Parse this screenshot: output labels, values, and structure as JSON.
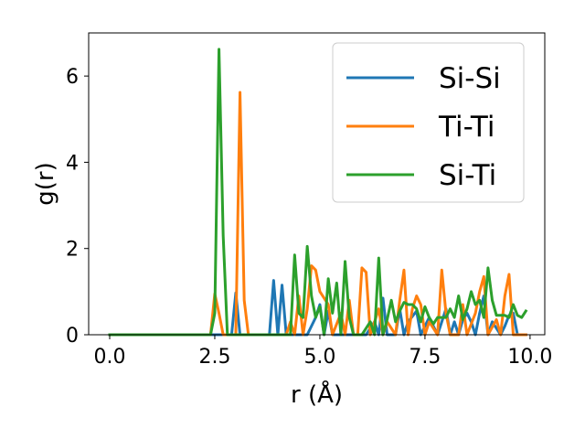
{
  "chart_data": {
    "type": "line",
    "title": "",
    "xlabel": "r (Å)",
    "ylabel": "g(r)",
    "xlim": [
      -0.5,
      10.35
    ],
    "ylim": [
      0,
      7
    ],
    "xticks": [
      0.0,
      2.5,
      5.0,
      7.5,
      10.0
    ],
    "xtick_labels": [
      "0.0",
      "2.5",
      "5.0",
      "7.5",
      "10.0"
    ],
    "yticks": [
      0,
      2,
      4,
      6
    ],
    "ytick_labels": [
      "0",
      "2",
      "4",
      "6"
    ],
    "grid": false,
    "legend_position": "top-right",
    "series": [
      {
        "name": "Si-Si",
        "color": "#1f77b4",
        "x": [
          0.0,
          2.9,
          3.0,
          3.1,
          3.8,
          3.9,
          4.0,
          4.1,
          4.2,
          4.7,
          4.9,
          5.0,
          5.1,
          5.2,
          5.3,
          6.1,
          6.3,
          6.4,
          6.5,
          6.6,
          6.8,
          6.9,
          7.0,
          7.1,
          7.3,
          7.4,
          7.5,
          7.6,
          7.8,
          7.9,
          8.0,
          8.1,
          8.2,
          8.3,
          8.4,
          8.5,
          8.6,
          8.7,
          8.8,
          8.9,
          9.0,
          9.1,
          9.3,
          9.4,
          9.5,
          9.6,
          9.7,
          9.9
        ],
        "y": [
          0,
          0,
          0.97,
          0,
          0,
          1.26,
          0,
          1.15,
          0,
          0,
          0.4,
          0.7,
          0,
          0.55,
          0,
          0,
          0.3,
          0,
          0.85,
          0,
          0,
          0.6,
          0,
          0.3,
          0.55,
          0,
          0.2,
          0.4,
          0,
          0.3,
          0.6,
          0,
          0.3,
          0,
          0.35,
          0.5,
          0.3,
          0,
          0.5,
          0.9,
          0,
          0.3,
          0,
          0.2,
          0.45,
          0.5,
          0,
          0
        ]
      },
      {
        "name": "Ti-Ti",
        "color": "#ff7f0e",
        "x": [
          0.0,
          2.4,
          2.5,
          2.6,
          2.7,
          3.0,
          3.1,
          3.2,
          3.3,
          4.2,
          4.3,
          4.4,
          4.5,
          4.6,
          4.7,
          4.8,
          4.9,
          5.0,
          5.2,
          5.3,
          5.5,
          5.6,
          5.7,
          5.8,
          5.9,
          6.0,
          6.1,
          6.2,
          6.4,
          6.5,
          6.6,
          6.8,
          6.9,
          7.0,
          7.1,
          7.2,
          7.3,
          7.4,
          7.5,
          7.6,
          7.8,
          7.9,
          8.0,
          8.1,
          8.3,
          8.4,
          8.5,
          8.7,
          8.8,
          8.9,
          9.0,
          9.2,
          9.3,
          9.4,
          9.5,
          9.6,
          9.7,
          9.9
        ],
        "y": [
          0,
          0,
          0.95,
          0.5,
          0,
          0,
          5.62,
          0.8,
          0,
          0,
          0.3,
          0,
          0.9,
          0,
          0.6,
          1.6,
          1.5,
          1.0,
          0.7,
          0,
          0.5,
          0,
          0.8,
          0,
          0,
          1.55,
          1.45,
          0,
          0.6,
          0,
          0.3,
          0,
          0.8,
          1.5,
          0,
          0.6,
          0.9,
          0.7,
          0,
          0.3,
          0,
          1.5,
          0.5,
          0,
          0,
          0.7,
          0,
          0.5,
          1.0,
          1.35,
          0,
          0.35,
          0,
          0.9,
          1.4,
          0,
          0,
          0
        ]
      },
      {
        "name": "Si-Ti",
        "color": "#2ca02c",
        "x": [
          0.0,
          2.4,
          2.5,
          2.6,
          2.7,
          2.8,
          4.0,
          4.3,
          4.4,
          4.5,
          4.6,
          4.7,
          4.8,
          4.9,
          5.0,
          5.1,
          5.2,
          5.3,
          5.4,
          5.5,
          5.6,
          5.7,
          5.8,
          6.0,
          6.2,
          6.3,
          6.4,
          6.5,
          6.6,
          6.7,
          6.8,
          6.9,
          7.0,
          7.1,
          7.2,
          7.3,
          7.4,
          7.5,
          7.6,
          7.7,
          7.8,
          8.0,
          8.1,
          8.2,
          8.3,
          8.4,
          8.5,
          8.6,
          8.7,
          8.8,
          8.9,
          9.0,
          9.1,
          9.2,
          9.3,
          9.4,
          9.5,
          9.6,
          9.7,
          9.8,
          9.9
        ],
        "y": [
          0,
          0,
          0.5,
          6.62,
          2.3,
          0,
          0,
          0,
          1.85,
          0.5,
          0.4,
          2.05,
          0.9,
          0.4,
          0.65,
          0,
          1.3,
          0.5,
          1.2,
          0,
          1.7,
          0.4,
          0,
          0,
          0.3,
          0,
          1.78,
          0,
          0.35,
          0.8,
          0.3,
          0.55,
          0.75,
          0.7,
          0.7,
          0.6,
          0.3,
          0.65,
          0.4,
          0.25,
          0.4,
          0.4,
          0.6,
          0.4,
          0.9,
          0.35,
          0.6,
          1.0,
          0.7,
          0.8,
          0.4,
          1.55,
          0.8,
          0.45,
          0.45,
          0.45,
          0.4,
          0.7,
          0.45,
          0.4,
          0.55
        ]
      }
    ]
  }
}
